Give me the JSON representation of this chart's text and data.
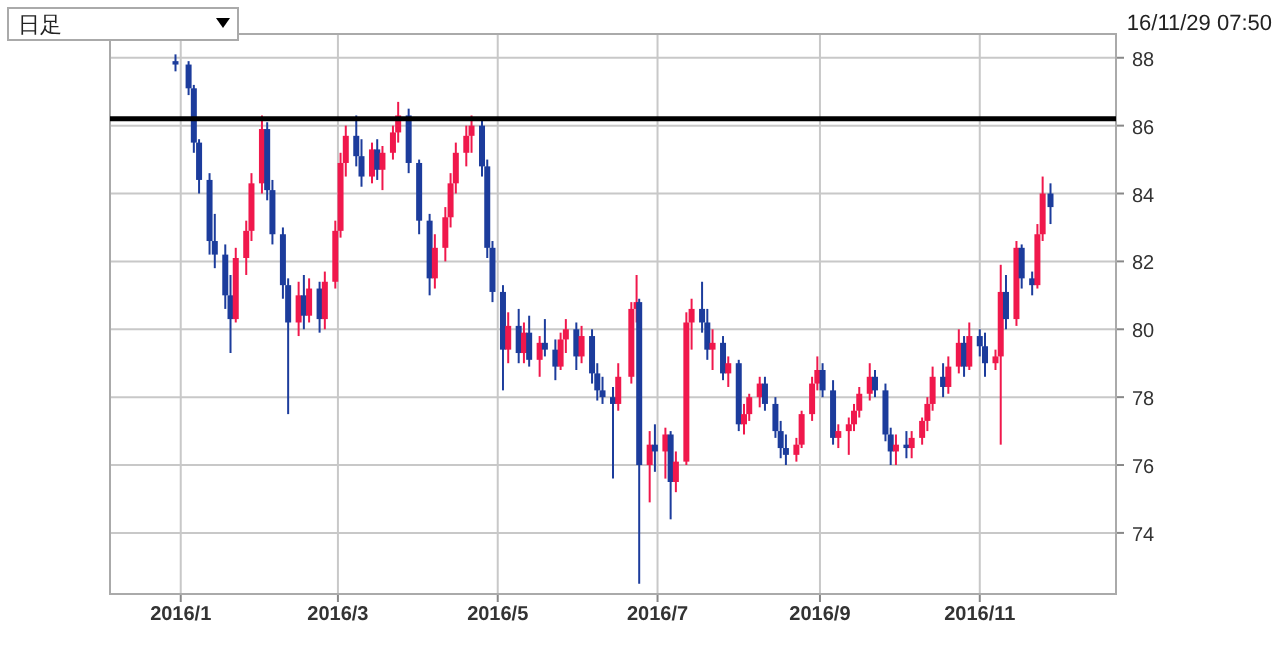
{
  "chart_data": {
    "type": "candlestick",
    "annotations": [
      "日足",
      "16/11/29 07:50"
    ],
    "colors": [
      "#1c3c9c",
      "#1c3c9c",
      "#1c3c9c",
      "#1c3c9c",
      "#1c3c9c",
      "#1c3c9c",
      "#1c3c9c",
      "#1c3c9c",
      "#f0184c",
      "#f0184c",
      "#f0184c",
      "#f0184c",
      "#1c3c9c",
      "#1c3c9c",
      "#1c3c9c",
      "#1c3c9c",
      "#f0184c",
      "#1c3c9c",
      "#f0184c",
      "#1c3c9c",
      "#f0184c",
      "#f0184c",
      "#f0184c",
      "#f0184c",
      "#1c3c9c",
      "#1c3c9c",
      "#f0184c",
      "#1c3c9c",
      "#f0184c",
      "#f0184c",
      "#f0184c",
      "#1c3c9c",
      "#1c3c9c",
      "#1c3c9c",
      "#f0184c",
      "#f0184c",
      "#f0184c",
      "#f0184c",
      "#f0184c",
      "#f0184c",
      "#1c3c9c",
      "#1c3c9c",
      "#1c3c9c",
      "#1c3c9c",
      "#f0184c",
      "#1c3c9c",
      "#f0184c",
      "#1c3c9c",
      "#f0184c",
      "#1c3c9c",
      "#1c3c9c",
      "#f0184c",
      "#f0184c",
      "#1c3c9c",
      "#f0184c",
      "#1c3c9c",
      "#1c3c9c",
      "#1c3c9c",
      "#1c3c9c",
      "#f0184c",
      "#f0184c",
      "#f0184c",
      "#1c3c9c",
      "#f0184c",
      "#1c3c9c",
      "#f0184c",
      "#1c3c9c",
      "#f0184c",
      "#f0184c",
      "#f0184c",
      "#1c3c9c",
      "#1c3c9c",
      "#f0184c",
      "#1c3c9c",
      "#f0184c",
      "#1c3c9c",
      "#f0184c",
      "#f0184c",
      "#f0184c",
      "#1c3c9c",
      "#1c3c9c",
      "#1c3c9c",
      "#1c3c9c",
      "#f0184c",
      "#f0184c",
      "#f0184c",
      "#f0184c",
      "#1c3c9c",
      "#1c3c9c",
      "#f0184c",
      "#f0184c",
      "#f0184c",
      "#f0184c",
      "#f0184c",
      "#1c3c9c",
      "#1c3c9c",
      "#1c3c9c",
      "#f0184c",
      "#1c3c9c",
      "#f0184c",
      "#f0184c",
      "#f0184c",
      "#f0184c",
      "#1c3c9c",
      "#f0184c",
      "#f0184c",
      "#1c3c9c",
      "#f0184c",
      "#1c3c9c",
      "#1c3c9c",
      "#f0184c",
      "#f0184c",
      "#1c3c9c",
      "#f0184c",
      "#1c3c9c",
      "#1c3c9c",
      "#f0184c",
      "#f0184c",
      "#1c3c9c"
    ],
    "xlim": [
      "2015-12-05",
      "2016-12-23"
    ],
    "xticks": [
      {
        "value": "2016-01-01",
        "label": "2016/1"
      },
      {
        "value": "2016-03-01",
        "label": "2016/3"
      },
      {
        "value": "2016-05-01",
        "label": "2016/5"
      },
      {
        "value": "2016-07-01",
        "label": "2016/7"
      },
      {
        "value": "2016-09-01",
        "label": "2016/9"
      },
      {
        "value": "2016-11-01",
        "label": "2016/11"
      }
    ],
    "ylim": [
      72.2,
      88.7
    ],
    "yticks": [
      74,
      76,
      78,
      80,
      82,
      84,
      86,
      88
    ],
    "grid": true,
    "ref_lines": [
      {
        "axis": "y",
        "value": 86.2,
        "color": "#000000"
      }
    ],
    "x": [
      "2015-12-30",
      "2016-01-04",
      "2016-01-06",
      "2016-01-08",
      "2016-01-12",
      "2016-01-14",
      "2016-01-18",
      "2016-01-20",
      "2016-01-22",
      "2016-01-26",
      "2016-01-28",
      "2016-02-01",
      "2016-02-03",
      "2016-02-05",
      "2016-02-09",
      "2016-02-11",
      "2016-02-15",
      "2016-02-17",
      "2016-02-19",
      "2016-02-23",
      "2016-02-25",
      "2016-02-29",
      "2016-03-02",
      "2016-03-04",
      "2016-03-08",
      "2016-03-10",
      "2016-03-14",
      "2016-03-16",
      "2016-03-18",
      "2016-03-22",
      "2016-03-24",
      "2016-03-28",
      "2016-04-01",
      "2016-04-05",
      "2016-04-07",
      "2016-04-11",
      "2016-04-13",
      "2016-04-15",
      "2016-04-19",
      "2016-04-21",
      "2016-04-25",
      "2016-04-27",
      "2016-04-29",
      "2016-05-03",
      "2016-05-05",
      "2016-05-09",
      "2016-05-11",
      "2016-05-13",
      "2016-05-17",
      "2016-05-19",
      "2016-05-23",
      "2016-05-25",
      "2016-05-27",
      "2016-05-31",
      "2016-06-02",
      "2016-06-06",
      "2016-06-08",
      "2016-06-10",
      "2016-06-14",
      "2016-06-16",
      "2016-06-21",
      "2016-06-23",
      "2016-06-24",
      "2016-06-28",
      "2016-06-30",
      "2016-07-04",
      "2016-07-06",
      "2016-07-08",
      "2016-07-12",
      "2016-07-14",
      "2016-07-18",
      "2016-07-20",
      "2016-07-22",
      "2016-07-26",
      "2016-07-28",
      "2016-08-01",
      "2016-08-03",
      "2016-08-05",
      "2016-08-09",
      "2016-08-11",
      "2016-08-15",
      "2016-08-17",
      "2016-08-19",
      "2016-08-23",
      "2016-08-25",
      "2016-08-29",
      "2016-08-31",
      "2016-09-02",
      "2016-09-06",
      "2016-09-08",
      "2016-09-12",
      "2016-09-14",
      "2016-09-16",
      "2016-09-20",
      "2016-09-22",
      "2016-09-26",
      "2016-09-28",
      "2016-09-30",
      "2016-10-04",
      "2016-10-06",
      "2016-10-10",
      "2016-10-12",
      "2016-10-14",
      "2016-10-18",
      "2016-10-20",
      "2016-10-24",
      "2016-10-26",
      "2016-10-28",
      "2016-11-01",
      "2016-11-03",
      "2016-11-07",
      "2016-11-09",
      "2016-11-11",
      "2016-11-15",
      "2016-11-17",
      "2016-11-21",
      "2016-11-23",
      "2016-11-25",
      "2016-11-28"
    ],
    "ohlc": [
      [
        87.9,
        88.1,
        87.6,
        87.8
      ],
      [
        87.8,
        87.9,
        86.9,
        87.1
      ],
      [
        87.1,
        87.2,
        85.2,
        85.5
      ],
      [
        85.5,
        85.6,
        84.0,
        84.4
      ],
      [
        84.4,
        84.6,
        82.2,
        82.6
      ],
      [
        82.6,
        83.4,
        81.8,
        82.2
      ],
      [
        82.2,
        82.5,
        80.6,
        81.0
      ],
      [
        81.0,
        81.6,
        79.3,
        80.3
      ],
      [
        80.3,
        82.4,
        80.2,
        82.1
      ],
      [
        82.1,
        83.2,
        81.6,
        82.9
      ],
      [
        82.9,
        84.6,
        82.6,
        84.3
      ],
      [
        84.3,
        86.3,
        84.0,
        85.9
      ],
      [
        85.9,
        86.1,
        83.8,
        84.1
      ],
      [
        84.1,
        84.4,
        82.5,
        82.8
      ],
      [
        82.8,
        83.0,
        80.9,
        81.3
      ],
      [
        81.3,
        81.5,
        77.5,
        80.2
      ],
      [
        80.2,
        81.4,
        79.8,
        81.0
      ],
      [
        81.0,
        81.6,
        80.0,
        80.4
      ],
      [
        80.4,
        81.5,
        80.2,
        81.2
      ],
      [
        81.2,
        81.4,
        79.9,
        80.3
      ],
      [
        80.3,
        81.7,
        80.0,
        81.4
      ],
      [
        81.4,
        83.2,
        81.2,
        82.9
      ],
      [
        82.9,
        85.2,
        82.7,
        84.9
      ],
      [
        84.9,
        86.0,
        84.5,
        85.7
      ],
      [
        85.7,
        86.3,
        84.8,
        85.1
      ],
      [
        85.1,
        85.6,
        84.2,
        84.5
      ],
      [
        84.5,
        85.5,
        84.3,
        85.3
      ],
      [
        85.3,
        85.6,
        84.4,
        84.7
      ],
      [
        84.7,
        85.4,
        84.1,
        85.2
      ],
      [
        85.2,
        86.0,
        85.0,
        85.8
      ],
      [
        85.8,
        86.7,
        85.5,
        86.3
      ],
      [
        86.3,
        86.5,
        84.6,
        84.9
      ],
      [
        84.9,
        85.0,
        82.8,
        83.2
      ],
      [
        83.2,
        83.4,
        81.0,
        81.5
      ],
      [
        81.5,
        82.8,
        81.2,
        82.4
      ],
      [
        82.4,
        83.6,
        82.0,
        83.3
      ],
      [
        83.3,
        84.6,
        83.0,
        84.3
      ],
      [
        84.3,
        85.5,
        84.0,
        85.2
      ],
      [
        85.2,
        86.0,
        84.8,
        85.7
      ],
      [
        85.7,
        86.3,
        85.2,
        86.0
      ],
      [
        86.0,
        86.2,
        84.5,
        84.8
      ],
      [
        84.8,
        85.0,
        82.1,
        82.4
      ],
      [
        82.4,
        82.6,
        80.8,
        81.1
      ],
      [
        81.1,
        81.3,
        78.2,
        79.4
      ],
      [
        79.4,
        80.5,
        79.0,
        80.1
      ],
      [
        80.1,
        80.6,
        79.0,
        79.3
      ],
      [
        79.3,
        80.2,
        79.0,
        79.9
      ],
      [
        79.9,
        80.4,
        78.9,
        79.1
      ],
      [
        79.1,
        79.8,
        78.6,
        79.6
      ],
      [
        79.6,
        80.3,
        79.2,
        79.4
      ],
      [
        79.4,
        79.7,
        78.5,
        78.9
      ],
      [
        78.9,
        79.9,
        78.8,
        79.7
      ],
      [
        79.7,
        80.3,
        79.3,
        80.0
      ],
      [
        80.0,
        80.2,
        78.8,
        79.2
      ],
      [
        79.2,
        80.1,
        79.0,
        79.8
      ],
      [
        79.8,
        80.0,
        78.4,
        78.7
      ],
      [
        78.7,
        79.0,
        77.9,
        78.2
      ],
      [
        78.2,
        78.6,
        77.8,
        78.0
      ],
      [
        78.0,
        78.3,
        75.6,
        77.8
      ],
      [
        77.8,
        79.0,
        77.6,
        78.6
      ],
      [
        78.6,
        80.8,
        78.4,
        80.6
      ],
      [
        80.6,
        81.6,
        80.2,
        80.8
      ],
      [
        80.8,
        80.9,
        72.5,
        76.0
      ],
      [
        76.0,
        77.0,
        74.9,
        76.6
      ],
      [
        76.6,
        77.2,
        75.8,
        76.4
      ],
      [
        76.4,
        77.1,
        75.6,
        76.9
      ],
      [
        76.9,
        77.0,
        74.4,
        75.5
      ],
      [
        75.5,
        76.4,
        75.2,
        76.1
      ],
      [
        76.1,
        80.5,
        76.0,
        80.2
      ],
      [
        80.2,
        80.9,
        79.4,
        80.6
      ],
      [
        80.6,
        81.4,
        79.9,
        80.2
      ],
      [
        80.2,
        80.6,
        79.1,
        79.4
      ],
      [
        79.4,
        80.0,
        78.8,
        79.6
      ],
      [
        79.6,
        79.8,
        78.5,
        78.7
      ],
      [
        78.7,
        79.2,
        78.3,
        79.0
      ],
      [
        79.0,
        79.1,
        77.0,
        77.2
      ],
      [
        77.2,
        77.8,
        76.9,
        77.5
      ],
      [
        77.5,
        78.1,
        77.3,
        78.0
      ],
      [
        78.0,
        78.6,
        77.7,
        78.4
      ],
      [
        78.4,
        78.6,
        77.6,
        77.8
      ],
      [
        77.8,
        78.0,
        76.8,
        77.0
      ],
      [
        77.0,
        77.3,
        76.2,
        76.5
      ],
      [
        76.5,
        76.9,
        76.0,
        76.3
      ],
      [
        76.3,
        76.8,
        76.1,
        76.6
      ],
      [
        76.6,
        77.6,
        76.5,
        77.5
      ],
      [
        77.5,
        78.6,
        77.3,
        78.4
      ],
      [
        78.4,
        79.2,
        78.2,
        78.8
      ],
      [
        78.8,
        79.0,
        78.0,
        78.2
      ],
      [
        78.2,
        78.5,
        76.6,
        76.8
      ],
      [
        76.8,
        77.2,
        76.5,
        77.0
      ],
      [
        77.0,
        77.4,
        76.3,
        77.2
      ],
      [
        77.2,
        77.8,
        77.0,
        77.6
      ],
      [
        77.6,
        78.3,
        77.4,
        78.1
      ],
      [
        78.1,
        79.0,
        77.9,
        78.6
      ],
      [
        78.6,
        78.8,
        78.0,
        78.2
      ],
      [
        78.2,
        78.4,
        76.7,
        76.9
      ],
      [
        76.9,
        77.1,
        76.0,
        76.4
      ],
      [
        76.4,
        76.9,
        76.0,
        76.6
      ],
      [
        76.6,
        77.0,
        76.2,
        76.5
      ],
      [
        76.5,
        77.0,
        76.2,
        76.8
      ],
      [
        76.8,
        77.4,
        76.6,
        77.3
      ],
      [
        77.3,
        78.0,
        77.0,
        77.8
      ],
      [
        77.8,
        78.9,
        77.6,
        78.6
      ],
      [
        78.6,
        79.0,
        78.0,
        78.3
      ],
      [
        78.3,
        79.2,
        78.1,
        78.9
      ],
      [
        78.9,
        80.0,
        78.7,
        79.6
      ],
      [
        79.6,
        79.8,
        78.6,
        78.9
      ],
      [
        78.9,
        80.2,
        78.8,
        79.8
      ],
      [
        79.8,
        80.0,
        79.2,
        79.5
      ],
      [
        79.5,
        79.9,
        78.6,
        79.0
      ],
      [
        79.0,
        79.4,
        78.8,
        79.2
      ],
      [
        79.2,
        81.9,
        76.6,
        81.1
      ],
      [
        81.1,
        81.6,
        80.0,
        80.3
      ],
      [
        80.3,
        82.6,
        80.1,
        82.4
      ],
      [
        82.4,
        82.5,
        81.2,
        81.5
      ],
      [
        81.5,
        81.7,
        81.0,
        81.3
      ],
      [
        81.3,
        83.1,
        81.2,
        82.8
      ],
      [
        82.8,
        84.5,
        82.6,
        84.0
      ],
      [
        84.0,
        84.3,
        83.1,
        83.6
      ]
    ]
  }
}
